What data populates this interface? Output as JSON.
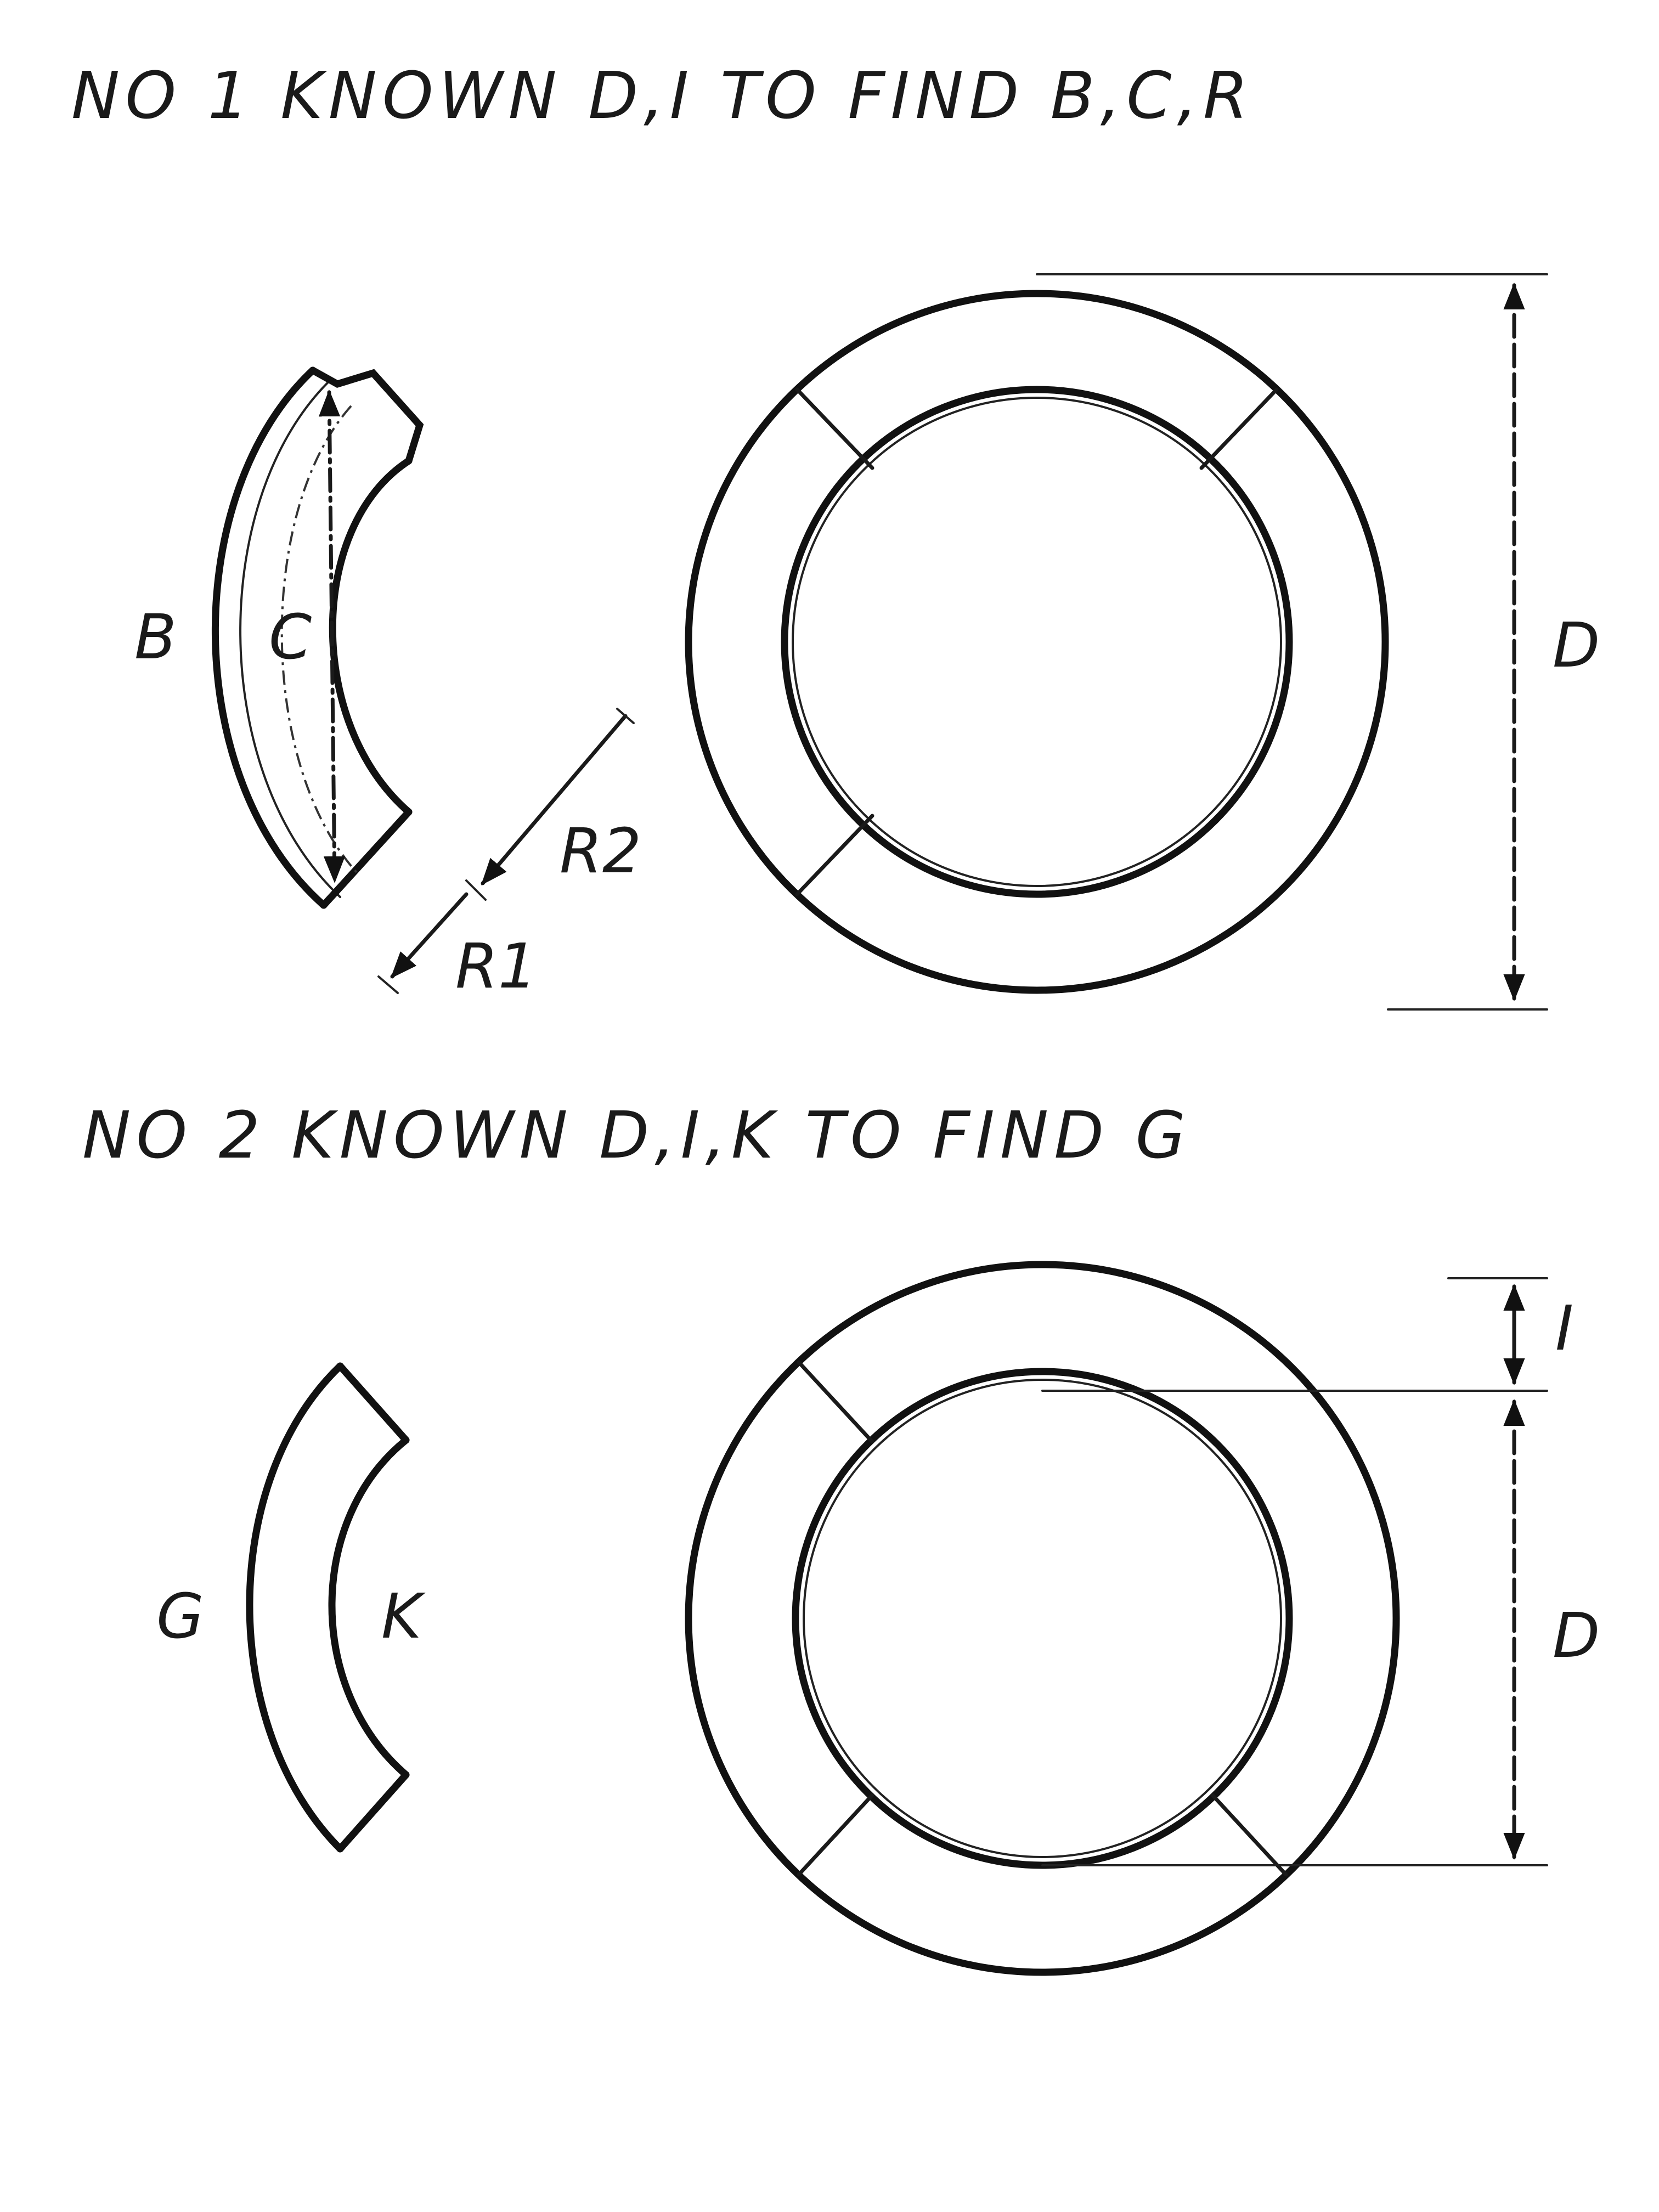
{
  "headings": {
    "no1": "NO 1   KNOWN D,I   TO FIND  B,C,R",
    "no2": "NO 2   KNOWN D,I,K   TO FIND  G"
  },
  "figure1": {
    "segment_labels": {
      "outer": "B",
      "center": "C"
    },
    "radius_labels": {
      "r1": "R1",
      "r2": "R2"
    },
    "dimension_label": "D"
  },
  "figure2": {
    "segment_labels": {
      "outer": "G",
      "inner": "K"
    },
    "dimension_labels": {
      "thickness": "I",
      "diameter": "D"
    }
  }
}
